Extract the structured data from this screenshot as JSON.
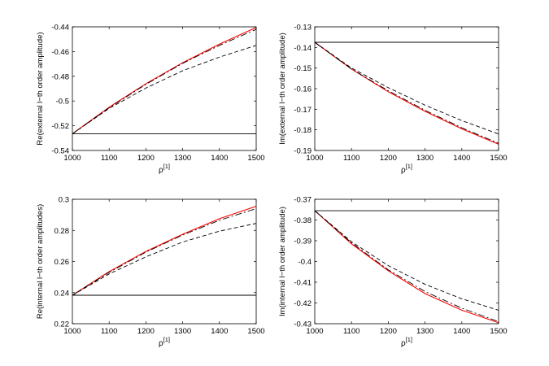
{
  "chart_data": [
    {
      "type": "line",
      "xlabel": "ρ",
      "xlabel_sup": "[1]",
      "ylabel": "Re(external l−th order amplitude)",
      "xlim": [
        1000,
        1500
      ],
      "ylim": [
        -0.54,
        -0.44
      ],
      "xticks": [
        1000,
        1100,
        1200,
        1300,
        1400,
        1500
      ],
      "xticklabels": [
        "1000",
        "1100",
        "1200",
        "1300",
        "1400",
        "1500"
      ],
      "yticks": [
        -0.54,
        -0.52,
        -0.5,
        -0.48,
        -0.46,
        -0.44
      ],
      "yticklabels": [
        "-0.54",
        "-0.52",
        "-0.5",
        "-0.48",
        "-0.46",
        "-0.44"
      ],
      "grid": false,
      "series": [
        {
          "style": "solid",
          "color": "#000000",
          "x": [
            1000,
            1500
          ],
          "y": [
            -0.5265,
            -0.5265
          ]
        },
        {
          "style": "solid",
          "color": "#ff0000",
          "x": [
            1000,
            1100,
            1200,
            1300,
            1400,
            1500
          ],
          "y": [
            -0.5265,
            -0.505,
            -0.486,
            -0.469,
            -0.454,
            -0.4405
          ]
        },
        {
          "style": "dashdot",
          "color": "#000000",
          "x": [
            1000,
            1100,
            1200,
            1300,
            1400,
            1500
          ],
          "y": [
            -0.5265,
            -0.5055,
            -0.4865,
            -0.4695,
            -0.455,
            -0.442
          ]
        },
        {
          "style": "dashed",
          "color": "#000000",
          "x": [
            1000,
            1100,
            1200,
            1300,
            1400,
            1500
          ],
          "y": [
            -0.5265,
            -0.506,
            -0.4895,
            -0.4755,
            -0.4645,
            -0.455
          ]
        }
      ]
    },
    {
      "type": "line",
      "xlabel": "ρ",
      "xlabel_sup": "[1]",
      "ylabel": "Im(external l−th order amplitude)",
      "xlim": [
        1000,
        1500
      ],
      "ylim": [
        -0.19,
        -0.13
      ],
      "xticks": [
        1000,
        1100,
        1200,
        1300,
        1400,
        1500
      ],
      "xticklabels": [
        "1000",
        "1100",
        "1200",
        "1300",
        "1400",
        "1500"
      ],
      "yticks": [
        -0.19,
        -0.18,
        -0.17,
        -0.16,
        -0.15,
        -0.14,
        -0.13
      ],
      "yticklabels": [
        "-0.19",
        "-0.18",
        "-0.17",
        "-0.16",
        "-0.15",
        "-0.14",
        "-0.13"
      ],
      "grid": false,
      "series": [
        {
          "style": "solid",
          "color": "#000000",
          "x": [
            1000,
            1500
          ],
          "y": [
            -0.1375,
            -0.1375
          ]
        },
        {
          "style": "solid",
          "color": "#ff0000",
          "x": [
            1000,
            1100,
            1200,
            1300,
            1400,
            1500
          ],
          "y": [
            -0.1375,
            -0.1505,
            -0.1615,
            -0.171,
            -0.1795,
            -0.187
          ]
        },
        {
          "style": "dashdot",
          "color": "#000000",
          "x": [
            1000,
            1100,
            1200,
            1300,
            1400,
            1500
          ],
          "y": [
            -0.1375,
            -0.1505,
            -0.161,
            -0.1705,
            -0.179,
            -0.1865
          ]
        },
        {
          "style": "dashed",
          "color": "#000000",
          "x": [
            1000,
            1100,
            1200,
            1300,
            1400,
            1500
          ],
          "y": [
            -0.1375,
            -0.15,
            -0.1595,
            -0.168,
            -0.1755,
            -0.182
          ]
        }
      ]
    },
    {
      "type": "line",
      "xlabel": "ρ",
      "xlabel_sup": "[1]",
      "ylabel": "Re(internal l−th order amplitudes)",
      "xlim": [
        1000,
        1500
      ],
      "ylim": [
        0.22,
        0.3
      ],
      "xticks": [
        1000,
        1100,
        1200,
        1300,
        1400,
        1500
      ],
      "xticklabels": [
        "1000",
        "1100",
        "1200",
        "1300",
        "1400",
        "1500"
      ],
      "yticks": [
        0.22,
        0.24,
        0.26,
        0.28,
        0.3
      ],
      "yticklabels": [
        "0.22",
        "0.24",
        "0.26",
        "0.28",
        "0.3"
      ],
      "grid": false,
      "series": [
        {
          "style": "solid",
          "color": "#000000",
          "x": [
            1000,
            1500
          ],
          "y": [
            0.2383,
            0.2383
          ]
        },
        {
          "style": "solid",
          "color": "#ff0000",
          "x": [
            1000,
            1100,
            1200,
            1300,
            1400,
            1500
          ],
          "y": [
            0.2383,
            0.2535,
            0.2665,
            0.2775,
            0.2875,
            0.2955
          ]
        },
        {
          "style": "dashdot",
          "color": "#000000",
          "x": [
            1000,
            1100,
            1200,
            1300,
            1400,
            1500
          ],
          "y": [
            0.2383,
            0.253,
            0.266,
            0.277,
            0.2865,
            0.294
          ]
        },
        {
          "style": "dashed",
          "color": "#000000",
          "x": [
            1000,
            1100,
            1200,
            1300,
            1400,
            1500
          ],
          "y": [
            0.2383,
            0.252,
            0.263,
            0.2725,
            0.2795,
            0.2845
          ]
        }
      ]
    },
    {
      "type": "line",
      "xlabel": "ρ",
      "xlabel_sup": "[1]",
      "ylabel": "Im(internal l−th order amplitude)",
      "xlim": [
        1000,
        1500
      ],
      "ylim": [
        -0.43,
        -0.37
      ],
      "xticks": [
        1000,
        1100,
        1200,
        1300,
        1400,
        1500
      ],
      "xticklabels": [
        "1000",
        "1100",
        "1200",
        "1300",
        "1400",
        "1500"
      ],
      "yticks": [
        -0.43,
        -0.42,
        -0.41,
        -0.4,
        -0.39,
        -0.38,
        -0.37
      ],
      "yticklabels": [
        "-0.43",
        "-0.42",
        "-0.41",
        "-0.4",
        "-0.39",
        "-0.38",
        "-0.37"
      ],
      "grid": false,
      "series": [
        {
          "style": "solid",
          "color": "#000000",
          "x": [
            1000,
            1500
          ],
          "y": [
            -0.3755,
            -0.3755
          ]
        },
        {
          "style": "solid",
          "color": "#ff0000",
          "x": [
            1000,
            1100,
            1200,
            1300,
            1400,
            1500
          ],
          "y": [
            -0.3755,
            -0.3915,
            -0.4045,
            -0.4155,
            -0.4235,
            -0.4295
          ]
        },
        {
          "style": "dashdot",
          "color": "#000000",
          "x": [
            1000,
            1100,
            1200,
            1300,
            1400,
            1500
          ],
          "y": [
            -0.3755,
            -0.391,
            -0.404,
            -0.4145,
            -0.4225,
            -0.429
          ]
        },
        {
          "style": "dashed",
          "color": "#000000",
          "x": [
            1000,
            1100,
            1200,
            1300,
            1400,
            1500
          ],
          "y": [
            -0.3755,
            -0.3905,
            -0.402,
            -0.411,
            -0.418,
            -0.4235
          ]
        }
      ]
    }
  ]
}
